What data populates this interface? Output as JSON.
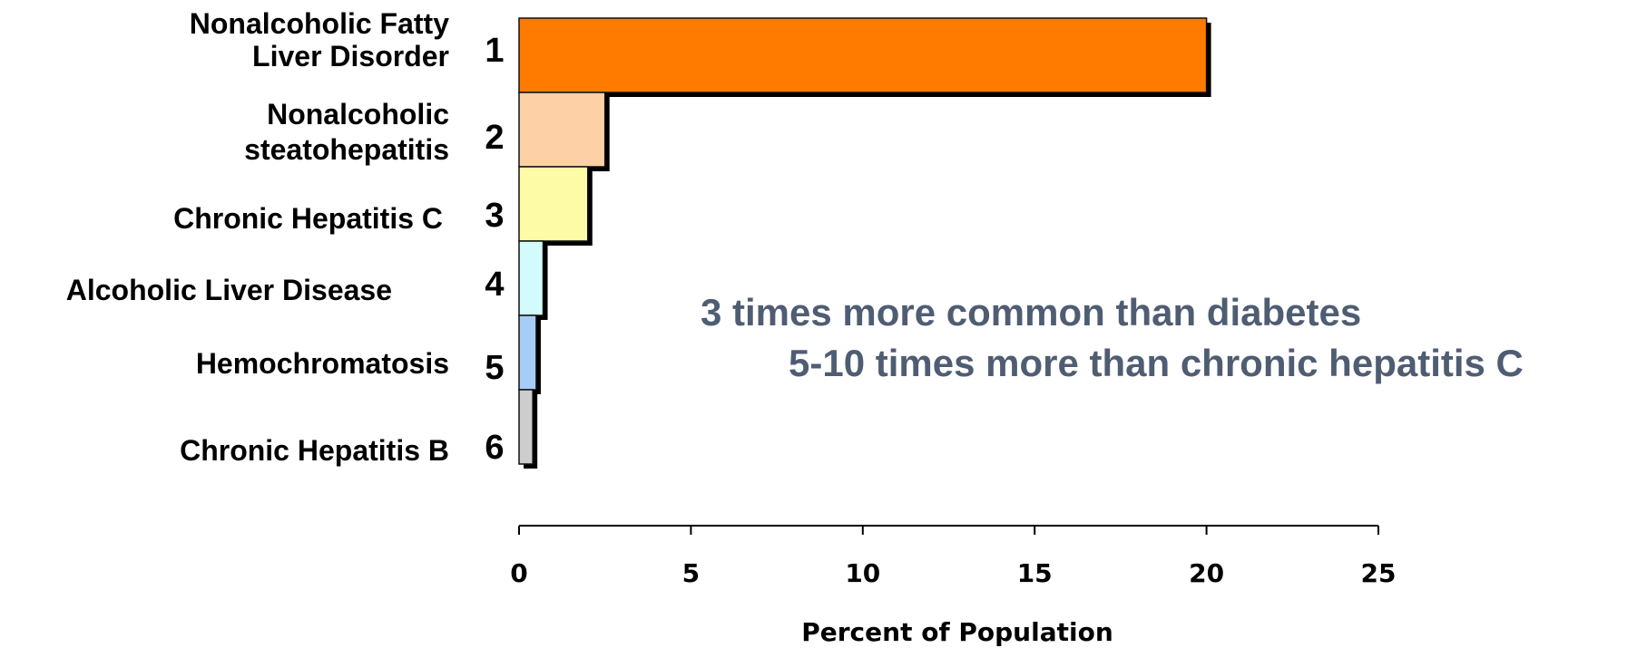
{
  "chart_data": {
    "type": "bar",
    "orientation": "horizontal",
    "categories": [
      [
        "Nonalcoholic Fatty",
        "Liver Disorder"
      ],
      [
        "Nonalcoholic",
        "steatohepatitis"
      ],
      [
        "Chronic Hepatitis C"
      ],
      [
        "Alcoholic Liver Disease"
      ],
      [
        "Hemochromatosis"
      ],
      [
        "Chronic Hepatitis B"
      ]
    ],
    "ranks": [
      "1",
      "2",
      "3",
      "4",
      "5",
      "6"
    ],
    "values": [
      20,
      2.5,
      2,
      0.7,
      0.5,
      0.4
    ],
    "bar_colors": [
      "#ff7b00",
      "#fdd0a6",
      "#fefba6",
      "#d4fbfb",
      "#a6cdf6",
      "#cdcdcd"
    ],
    "xlabel": "Percent of Population",
    "xlim": [
      0,
      25
    ],
    "xticks": [
      "0",
      "5",
      "10",
      "15",
      "20",
      "25"
    ],
    "grid": false,
    "annotations": [
      "3 times more common than diabetes",
      "5-10 times more than chronic hepatitis C"
    ],
    "annotation_color": "#4f5d73"
  }
}
